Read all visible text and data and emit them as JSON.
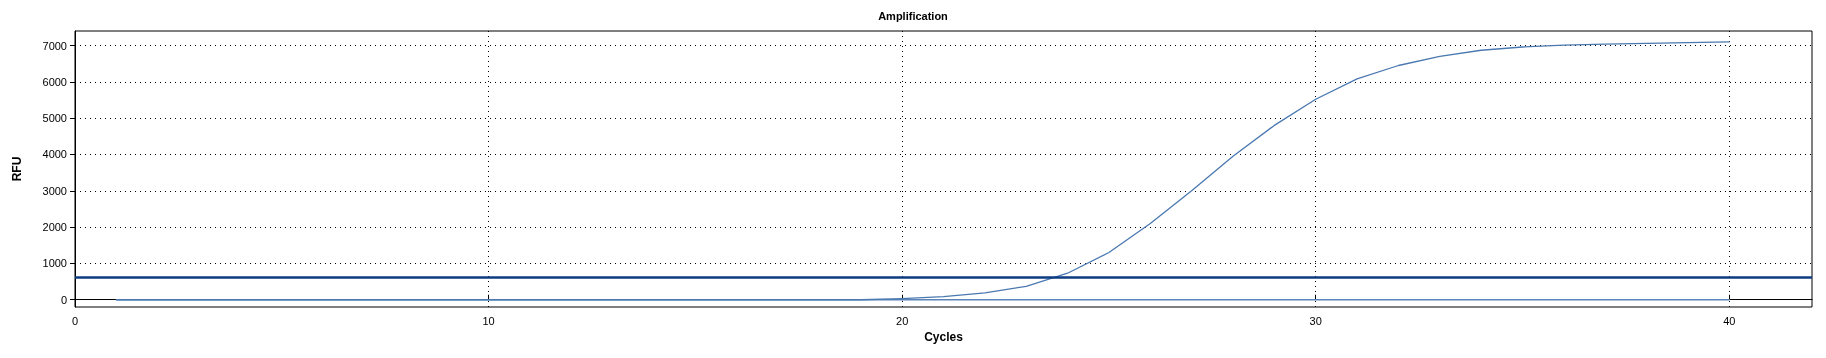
{
  "chart_data": {
    "type": "line",
    "title": "Amplification",
    "xlabel": "Cycles",
    "ylabel": "RFU",
    "x": [
      1,
      2,
      3,
      4,
      5,
      6,
      7,
      8,
      9,
      10,
      11,
      12,
      13,
      14,
      15,
      16,
      17,
      18,
      19,
      20,
      21,
      22,
      23,
      24,
      25,
      26,
      27,
      28,
      29,
      30,
      31,
      32,
      33,
      34,
      35,
      36,
      37,
      38,
      39,
      40
    ],
    "series": [
      {
        "color": "#4a78b0",
        "values": [
          0,
          0,
          0,
          0,
          0,
          0,
          0,
          0,
          0,
          0,
          0,
          0,
          0,
          0,
          0,
          0,
          0,
          0,
          0,
          30,
          85,
          190,
          370,
          730,
          1300,
          2100,
          3000,
          3950,
          4800,
          5520,
          6080,
          6450,
          6700,
          6870,
          6960,
          7010,
          7040,
          7060,
          7080,
          7100
        ]
      },
      {
        "color": "#5b84b8",
        "values": [
          0,
          0,
          0,
          0,
          0,
          0,
          0,
          0,
          0,
          0,
          0,
          0,
          0,
          0,
          0,
          0,
          0,
          0,
          0,
          0,
          0,
          0,
          0,
          0,
          0,
          0,
          0,
          0,
          0,
          0,
          0,
          0,
          0,
          0,
          0,
          0,
          0,
          0,
          0,
          0
        ]
      }
    ],
    "ref_lines": [
      {
        "axis": "y",
        "value": 620,
        "color": "#0d3b82"
      }
    ],
    "xlim": [
      0,
      42
    ],
    "xticks": [
      0,
      10,
      20,
      30,
      40
    ],
    "ylim": [
      -200,
      7400
    ],
    "yticks": [
      0,
      1000,
      2000,
      3000,
      4000,
      5000,
      6000,
      7000
    ],
    "grid": true,
    "marker": "none",
    "line_style": "solid"
  }
}
